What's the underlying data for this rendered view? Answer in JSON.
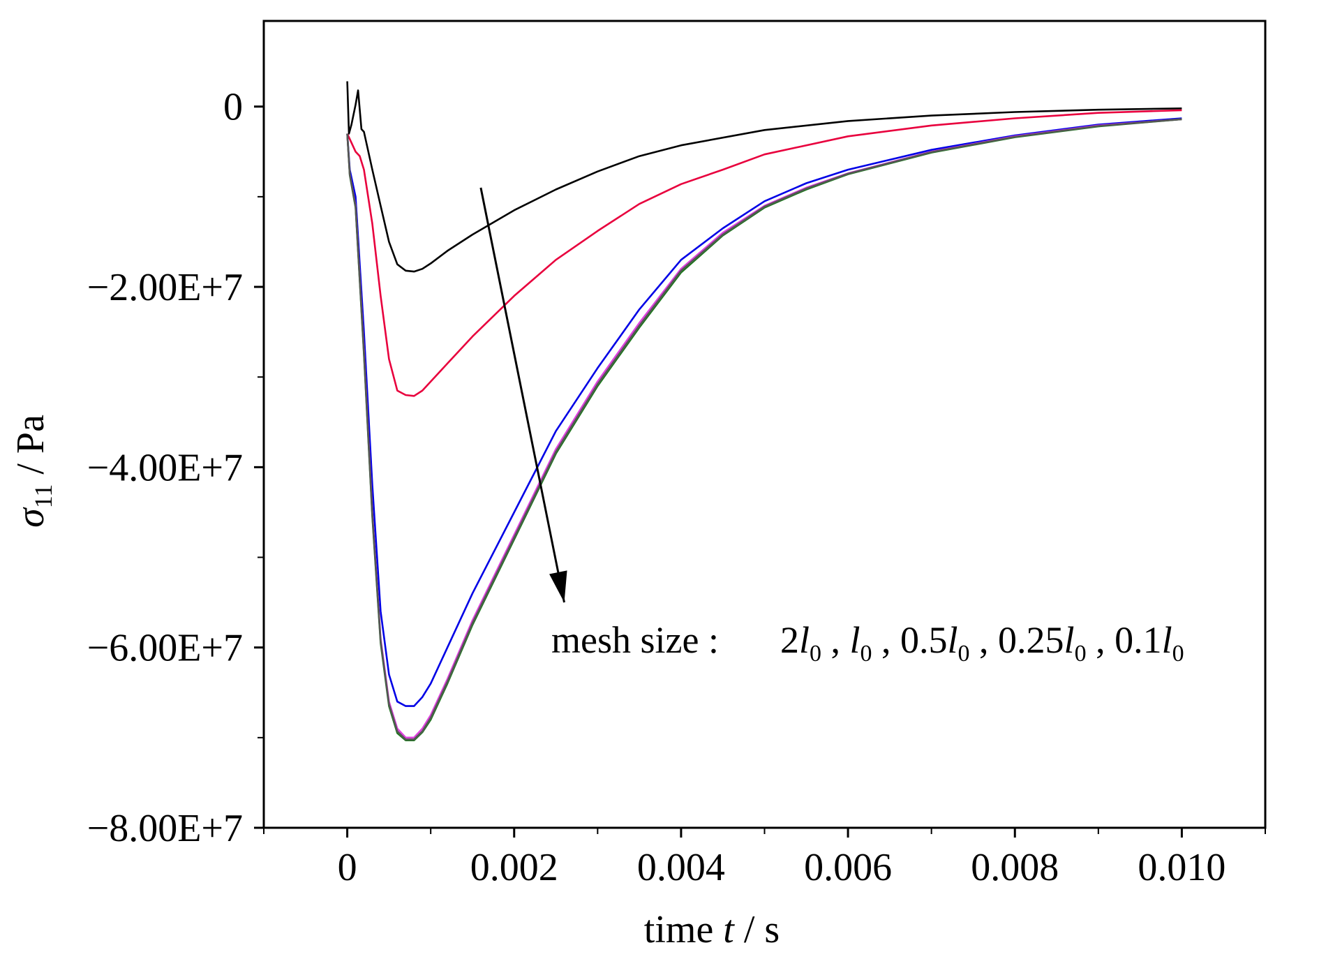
{
  "chart_data": {
    "type": "line",
    "title": "",
    "xlabel": "time t / s",
    "xlabel_parts": {
      "prefix": "time ",
      "var": "t",
      "suffix": " / s"
    },
    "ylabel": "σ11 / Pa",
    "ylabel_parts": {
      "sym": "σ",
      "sub": "11",
      "suffix": " / Pa"
    },
    "xlim": [
      -0.001,
      0.011
    ],
    "ylim": [
      -80000000,
      9500000
    ],
    "x_ticks": [
      0,
      0.002,
      0.004,
      0.006,
      0.008,
      0.01
    ],
    "x_tick_labels": [
      "0",
      "0.002",
      "0.004",
      "0.006",
      "0.008",
      "0.010"
    ],
    "y_ticks": [
      0,
      -20000000,
      -40000000,
      -60000000,
      -80000000
    ],
    "y_tick_labels": [
      "0",
      "−2.00E+7",
      "−4.00E+7",
      "−6.00E+7",
      "−8.00E+7"
    ],
    "grid": false,
    "annotation": {
      "label": "mesh size :",
      "sizes": [
        "2l0",
        "l0",
        "0.5l0",
        "0.25l0",
        "0.1l0"
      ],
      "arrow_from": [
        0.0016,
        -9000000
      ],
      "arrow_to": [
        0.0026,
        -55000000
      ]
    },
    "series": [
      {
        "color": "#000000",
        "x": [
          0,
          2e-05,
          5e-05,
          0.0001,
          0.00013,
          0.00017,
          0.0002,
          0.0003,
          0.0004,
          0.0005,
          0.0006,
          0.0007,
          0.0008,
          0.0009,
          0.001,
          0.0012,
          0.0015,
          0.002,
          0.0025,
          0.003,
          0.0035,
          0.004,
          0.005,
          0.006,
          0.007,
          0.008,
          0.009,
          0.01
        ],
        "y": [
          2800000,
          -3000000,
          -2000000,
          200000,
          1800000,
          -2500000,
          -2800000,
          -7000000,
          -11000000,
          -15000000,
          -17500000,
          -18200000,
          -18300000,
          -18000000,
          -17400000,
          -16000000,
          -14200000,
          -11500000,
          -9200000,
          -7200000,
          -5500000,
          -4300000,
          -2600000,
          -1600000,
          -1000000,
          -600000,
          -350000,
          -200000
        ]
      },
      {
        "color": "#e8003d",
        "x": [
          0,
          5e-05,
          0.0001,
          0.00015,
          0.0002,
          0.0003,
          0.0004,
          0.0005,
          0.0006,
          0.0007,
          0.0008,
          0.0009,
          0.001,
          0.0012,
          0.0015,
          0.002,
          0.0025,
          0.003,
          0.0035,
          0.004,
          0.0045,
          0.005,
          0.006,
          0.007,
          0.008,
          0.009,
          0.01
        ],
        "y": [
          -3000000,
          -4000000,
          -5000000,
          -5500000,
          -7000000,
          -13000000,
          -21000000,
          -28000000,
          -31500000,
          -32000000,
          -32100000,
          -31500000,
          -30500000,
          -28500000,
          -25500000,
          -21000000,
          -17000000,
          -13800000,
          -10800000,
          -8600000,
          -7000000,
          -5300000,
          -3300000,
          -2100000,
          -1300000,
          -700000,
          -400000
        ]
      },
      {
        "color": "#0000e6",
        "x": [
          0,
          3e-05,
          0.0001,
          0.0002,
          0.0003,
          0.0004,
          0.0005,
          0.0006,
          0.0007,
          0.0008,
          0.0009,
          0.001,
          0.0012,
          0.0015,
          0.002,
          0.0025,
          0.003,
          0.0035,
          0.004,
          0.0045,
          0.005,
          0.0055,
          0.006,
          0.007,
          0.008,
          0.009,
          0.01
        ],
        "y": [
          -3000000,
          -7000000,
          -10000000,
          -25000000,
          -42000000,
          -56000000,
          -63000000,
          -66000000,
          -66500000,
          -66500000,
          -65500000,
          -64000000,
          -60000000,
          -54000000,
          -45000000,
          -36000000,
          -29000000,
          -22500000,
          -17000000,
          -13500000,
          -10500000,
          -8500000,
          -7000000,
          -4800000,
          -3200000,
          -2000000,
          -1300000
        ]
      },
      {
        "color": "#e040e0",
        "x": [
          0,
          3e-05,
          0.0001,
          0.0002,
          0.0003,
          0.0004,
          0.0005,
          0.0006,
          0.0007,
          0.0008,
          0.0009,
          0.001,
          0.0012,
          0.0015,
          0.002,
          0.0025,
          0.003,
          0.0035,
          0.004,
          0.0045,
          0.005,
          0.0055,
          0.006,
          0.007,
          0.008,
          0.009,
          0.01
        ],
        "y": [
          -3000000,
          -7500000,
          -11000000,
          -27000000,
          -45000000,
          -59000000,
          -66000000,
          -69000000,
          -70000000,
          -70000000,
          -69000000,
          -67500000,
          -63500000,
          -57000000,
          -47500000,
          -38000000,
          -30500000,
          -24000000,
          -18000000,
          -14000000,
          -11000000,
          -9000000,
          -7400000,
          -5000000,
          -3300000,
          -2100000,
          -1400000
        ]
      },
      {
        "color": "#1a7a1a",
        "x": [
          0,
          3e-05,
          0.0001,
          0.0002,
          0.0003,
          0.0004,
          0.0005,
          0.0006,
          0.0007,
          0.0008,
          0.0009,
          0.001,
          0.0012,
          0.0015,
          0.002,
          0.0025,
          0.003,
          0.0035,
          0.004,
          0.0045,
          0.005,
          0.0055,
          0.006,
          0.007,
          0.008,
          0.009,
          0.01
        ],
        "y": [
          -3000000,
          -7600000,
          -11200000,
          -27500000,
          -45500000,
          -59500000,
          -66500000,
          -69500000,
          -70300000,
          -70300000,
          -69400000,
          -68000000,
          -64000000,
          -57500000,
          -48000000,
          -38500000,
          -31000000,
          -24500000,
          -18400000,
          -14300000,
          -11200000,
          -9200000,
          -7500000,
          -5100000,
          -3400000,
          -2200000,
          -1400000
        ]
      },
      {
        "color": "#555555",
        "x": [
          0,
          3e-05,
          0.0001,
          0.0002,
          0.0003,
          0.0004,
          0.0005,
          0.0006,
          0.0007,
          0.0008,
          0.0009,
          0.001,
          0.0012,
          0.0015,
          0.002,
          0.0025,
          0.003,
          0.0035,
          0.004,
          0.0045,
          0.005,
          0.0055,
          0.006,
          0.007,
          0.008,
          0.009,
          0.01
        ],
        "y": [
          -3000000,
          -7500000,
          -11100000,
          -27300000,
          -45300000,
          -59300000,
          -66300000,
          -69300000,
          -70200000,
          -70200000,
          -69300000,
          -67800000,
          -63800000,
          -57300000,
          -47800000,
          -38300000,
          -30800000,
          -24300000,
          -18200000,
          -14200000,
          -11100000,
          -9100000,
          -7450000,
          -5050000,
          -3350000,
          -2150000,
          -1400000
        ]
      }
    ]
  }
}
